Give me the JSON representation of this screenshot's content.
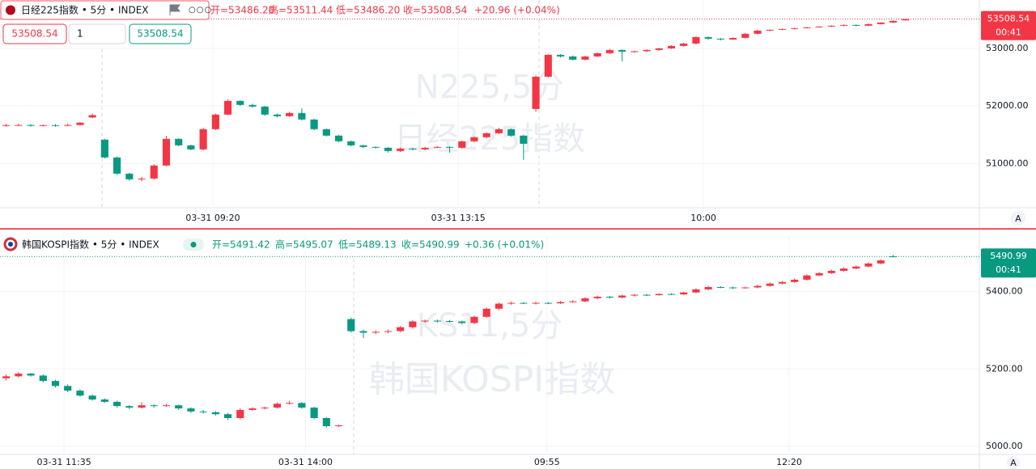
{
  "chart_data": [
    {
      "type": "candlestick",
      "title": "日经225指数 • 5分 • INDEX",
      "legend": {
        "open": "开=53486.20",
        "high": "高=53511.44",
        "low": "低=53486.20",
        "close": "收=53508.54",
        "change": "+20.96 (+0.04%)"
      },
      "price_boxes": [
        "53508.54",
        "1",
        "53508.54"
      ],
      "watermark": [
        "N225,5分",
        "日经225指数"
      ],
      "last_price_label": "53508.54",
      "countdown": "00:41",
      "scale_button": "A",
      "up_color": "#f23645",
      "down_color": "#089981",
      "grid": true,
      "xlim": [
        -0.5,
        79
      ],
      "xticks": [
        {
          "value": 16.78,
          "label": "03-31 09:20"
        },
        {
          "value": 36.7,
          "label": "03-31 13:15"
        },
        {
          "value": 56.6,
          "label": "10:00"
        }
      ],
      "ylim": [
        50260,
        53840
      ],
      "yticks": [
        {
          "value": 53000,
          "label": "53000.00"
        },
        {
          "value": 52000,
          "label": "52000.00"
        },
        {
          "value": 51000,
          "label": "51000.00"
        }
      ],
      "candles": [
        [
          51660,
          51690,
          51640,
          51667
        ],
        [
          51667,
          51690,
          51650,
          51670
        ],
        [
          51670,
          51685,
          51640,
          51655
        ],
        [
          51655,
          51680,
          51645,
          51667
        ],
        [
          51667,
          51685,
          51640,
          51655
        ],
        [
          51655,
          51690,
          51650,
          51670
        ],
        [
          51670,
          51720,
          51660,
          51710
        ],
        [
          51800,
          51870,
          51790,
          51840
        ],
        [
          51415,
          51430,
          51090,
          51106
        ],
        [
          51106,
          51120,
          50800,
          50825
        ],
        [
          50825,
          50840,
          50700,
          50727
        ],
        [
          50727,
          50770,
          50690,
          50740
        ],
        [
          50740,
          50990,
          50720,
          50966
        ],
        [
          50966,
          51480,
          50950,
          51429
        ],
        [
          51429,
          51440,
          51300,
          51316
        ],
        [
          51316,
          51330,
          51230,
          51246
        ],
        [
          51246,
          51620,
          51230,
          51597
        ],
        [
          51597,
          51870,
          51580,
          51850
        ],
        [
          51850,
          52120,
          51840,
          52088
        ],
        [
          52088,
          52100,
          52000,
          52018
        ],
        [
          52018,
          52040,
          51970,
          51990
        ],
        [
          51990,
          52000,
          51830,
          51850
        ],
        [
          51850,
          51870,
          51800,
          51822
        ],
        [
          51822,
          51900,
          51810,
          51878
        ],
        [
          51878,
          51960,
          51750,
          51765
        ],
        [
          51765,
          51780,
          51580,
          51597
        ],
        [
          51597,
          51610,
          51470,
          51485
        ],
        [
          51485,
          51500,
          51370,
          51387
        ],
        [
          51387,
          51400,
          51300,
          51316
        ],
        [
          51316,
          51330,
          51270,
          51288
        ],
        [
          51288,
          51300,
          51260,
          51274
        ],
        [
          51274,
          51285,
          51190,
          51218
        ],
        [
          51218,
          51280,
          51200,
          51260
        ],
        [
          51260,
          51275,
          51230,
          51246
        ],
        [
          51246,
          51290,
          51230,
          51274
        ],
        [
          51274,
          51300,
          51270,
          51288
        ],
        [
          51288,
          51300,
          51190,
          51274
        ],
        [
          51274,
          51400,
          51260,
          51387
        ],
        [
          51387,
          51470,
          51370,
          51457
        ],
        [
          51457,
          51540,
          51440,
          51527
        ],
        [
          51527,
          51620,
          51510,
          51597
        ],
        [
          51597,
          51610,
          51470,
          51485
        ],
        [
          51485,
          51500,
          51064,
          51344
        ],
        [
          51948,
          52530,
          51900,
          52509
        ],
        [
          52509,
          52900,
          52490,
          52888
        ],
        [
          52888,
          52900,
          52840,
          52860
        ],
        [
          52860,
          52875,
          52790,
          52804
        ],
        [
          52804,
          52870,
          52790,
          52860
        ],
        [
          52860,
          52930,
          52850,
          52916
        ],
        [
          52916,
          52990,
          52900,
          52972
        ],
        [
          52972,
          52985,
          52776,
          52944
        ],
        [
          52944,
          52960,
          52930,
          52950
        ],
        [
          52950,
          52985,
          52940,
          52972
        ],
        [
          52972,
          53010,
          52960,
          53000
        ],
        [
          53000,
          53055,
          52990,
          53042
        ],
        [
          53042,
          53095,
          53030,
          53084
        ],
        [
          53084,
          53210,
          53070,
          53196
        ],
        [
          53196,
          53205,
          53150,
          53168
        ],
        [
          53168,
          53180,
          53140,
          53154
        ],
        [
          53154,
          53190,
          53145,
          53182
        ],
        [
          53182,
          53265,
          53170,
          53253
        ],
        [
          53253,
          53320,
          53245,
          53309
        ],
        [
          53309,
          53330,
          53300,
          53323
        ],
        [
          53323,
          53345,
          53315,
          53337
        ],
        [
          53337,
          53360,
          53330,
          53351
        ],
        [
          53351,
          53372,
          53345,
          53365
        ],
        [
          53365,
          53385,
          53360,
          53379
        ],
        [
          53379,
          53400,
          53370,
          53393
        ],
        [
          53393,
          53415,
          53385,
          53407
        ],
        [
          53407,
          53415,
          53385,
          53393
        ],
        [
          53393,
          53430,
          53388,
          53421
        ],
        [
          53421,
          53455,
          53415,
          53449
        ],
        [
          53449,
          53485,
          53440,
          53477
        ],
        [
          53486.2,
          53511.44,
          53486.2,
          53508.54
        ]
      ]
    },
    {
      "type": "candlestick",
      "title": "韩国KOSPI指数 • 5分 • INDEX",
      "legend": {
        "open": "开=5491.42",
        "high": "高=5495.07",
        "low": "低=5489.13",
        "close": "收=5490.99",
        "change": "+0.36 (+0.01%)"
      },
      "watermark": [
        "KS11,5分",
        "韩国KOSPI指数"
      ],
      "last_price_label": "5490.99",
      "countdown": "00:41",
      "scale_button": "A",
      "up_color": "#f23645",
      "down_color": "#089981",
      "grid": true,
      "xlim": [
        -0.5,
        79
      ],
      "xticks": [
        {
          "value": 4.7,
          "label": "03-31 11:35"
        },
        {
          "value": 24.3,
          "label": "03-31 14:00"
        },
        {
          "value": 43.9,
          "label": "09:55"
        },
        {
          "value": 63.56,
          "label": "12:20"
        }
      ],
      "ylim": [
        4983,
        5548
      ],
      "yticks": [
        {
          "value": 5400,
          "label": "5400.00"
        },
        {
          "value": 5200,
          "label": "5200.00"
        },
        {
          "value": 5000,
          "label": "5000.00"
        }
      ],
      "candles": [
        [
          5176,
          5186,
          5170,
          5181
        ],
        [
          5181,
          5192,
          5178,
          5188
        ],
        [
          5188,
          5190,
          5180,
          5183
        ],
        [
          5183,
          5186,
          5165,
          5169
        ],
        [
          5169,
          5172,
          5152,
          5156
        ],
        [
          5156,
          5160,
          5140,
          5144
        ],
        [
          5144,
          5147,
          5128,
          5131
        ],
        [
          5131,
          5134,
          5118,
          5121
        ],
        [
          5121,
          5124,
          5112,
          5115
        ],
        [
          5115,
          5118,
          5100,
          5104
        ],
        [
          5104,
          5107,
          5096,
          5100
        ],
        [
          5100,
          5114,
          5098,
          5106
        ],
        [
          5106,
          5109,
          5100,
          5104
        ],
        [
          5104,
          5110,
          5102,
          5106
        ],
        [
          5106,
          5108,
          5094,
          5098
        ],
        [
          5098,
          5101,
          5086,
          5090
        ],
        [
          5090,
          5094,
          5085,
          5088
        ],
        [
          5088,
          5091,
          5079,
          5083
        ],
        [
          5083,
          5086,
          5068,
          5073
        ],
        [
          5073,
          5098,
          5070,
          5094
        ],
        [
          5094,
          5101,
          5092,
          5098
        ],
        [
          5098,
          5103,
          5095,
          5100
        ],
        [
          5100,
          5113,
          5098,
          5110
        ],
        [
          5110,
          5118,
          5108,
          5112
        ],
        [
          5112,
          5114,
          5097,
          5100
        ],
        [
          5100,
          5102,
          5070,
          5073
        ],
        [
          5073,
          5075,
          5048,
          5052
        ],
        [
          5052,
          5056,
          5050,
          5054
        ],
        [
          5329,
          5333,
          5294,
          5298
        ],
        [
          5298,
          5302,
          5280,
          5294
        ],
        [
          5294,
          5300,
          5290,
          5296
        ],
        [
          5296,
          5302,
          5292,
          5298
        ],
        [
          5298,
          5311,
          5295,
          5308
        ],
        [
          5308,
          5326,
          5305,
          5323
        ],
        [
          5323,
          5328,
          5320,
          5325
        ],
        [
          5325,
          5328,
          5320,
          5324
        ],
        [
          5324,
          5327,
          5320,
          5323
        ],
        [
          5323,
          5325,
          5315,
          5319
        ],
        [
          5319,
          5338,
          5316,
          5335
        ],
        [
          5335,
          5359,
          5332,
          5356
        ],
        [
          5356,
          5372,
          5352,
          5369
        ],
        [
          5369,
          5374,
          5366,
          5371
        ],
        [
          5371,
          5373,
          5368,
          5370
        ],
        [
          5370,
          5374,
          5367,
          5371
        ],
        [
          5371,
          5373,
          5368,
          5370
        ],
        [
          5370,
          5376,
          5368,
          5373
        ],
        [
          5373,
          5378,
          5371,
          5375
        ],
        [
          5375,
          5386,
          5373,
          5383
        ],
        [
          5383,
          5390,
          5380,
          5387
        ],
        [
          5387,
          5389,
          5382,
          5385
        ],
        [
          5385,
          5392,
          5383,
          5390
        ],
        [
          5390,
          5394,
          5388,
          5392
        ],
        [
          5392,
          5394,
          5389,
          5391
        ],
        [
          5391,
          5396,
          5390,
          5394
        ],
        [
          5394,
          5396,
          5391,
          5393
        ],
        [
          5393,
          5400,
          5391,
          5398
        ],
        [
          5398,
          5409,
          5396,
          5406
        ],
        [
          5406,
          5415,
          5404,
          5412
        ],
        [
          5412,
          5414,
          5409,
          5411
        ],
        [
          5411,
          5413,
          5407,
          5410
        ],
        [
          5410,
          5413,
          5408,
          5411
        ],
        [
          5411,
          5418,
          5409,
          5415
        ],
        [
          5415,
          5424,
          5413,
          5421
        ],
        [
          5421,
          5428,
          5419,
          5425
        ],
        [
          5425,
          5434,
          5423,
          5431
        ],
        [
          5431,
          5445,
          5429,
          5442
        ],
        [
          5442,
          5451,
          5440,
          5448
        ],
        [
          5448,
          5457,
          5446,
          5454
        ],
        [
          5454,
          5463,
          5452,
          5460
        ],
        [
          5460,
          5468,
          5458,
          5465
        ],
        [
          5465,
          5476,
          5463,
          5473
        ],
        [
          5473,
          5484,
          5471,
          5481
        ],
        [
          5491.42,
          5495.07,
          5489.13,
          5490.99
        ]
      ]
    }
  ]
}
